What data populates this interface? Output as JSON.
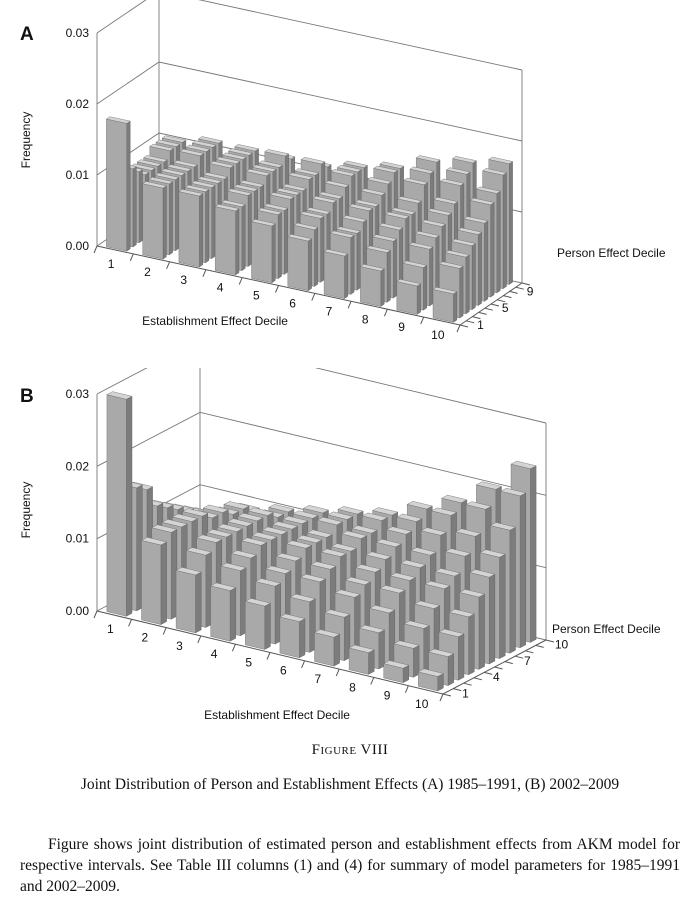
{
  "chart_data": [
    {
      "type": "bar3d",
      "panel": "A",
      "ylabel": "Frequency",
      "xlabel": "Establishment Effect Decile",
      "zlabel": "Person Effect Decile",
      "ylim": [
        0,
        0.03
      ],
      "yticks": [
        "0.00",
        "0.01",
        "0.02",
        "0.03"
      ],
      "x_categories": [
        "1",
        "2",
        "3",
        "4",
        "5",
        "6",
        "7",
        "8",
        "9",
        "10"
      ],
      "z_tick_labels": [
        "1",
        "5",
        "9"
      ],
      "values": [
        [
          0.018,
          0.01,
          0.01,
          0.009,
          0.008,
          0.007,
          0.006,
          0.005,
          0.004,
          0.004
        ],
        [
          0.011,
          0.01,
          0.01,
          0.009,
          0.009,
          0.008,
          0.008,
          0.007,
          0.006,
          0.007
        ],
        [
          0.01,
          0.01,
          0.01,
          0.01,
          0.009,
          0.009,
          0.008,
          0.008,
          0.008,
          0.008
        ],
        [
          0.009,
          0.01,
          0.01,
          0.01,
          0.01,
          0.009,
          0.009,
          0.009,
          0.009,
          0.009
        ],
        [
          0.009,
          0.01,
          0.01,
          0.01,
          0.01,
          0.01,
          0.01,
          0.01,
          0.01,
          0.01
        ],
        [
          0.009,
          0.01,
          0.011,
          0.011,
          0.01,
          0.01,
          0.01,
          0.01,
          0.011,
          0.011
        ],
        [
          0.009,
          0.011,
          0.011,
          0.011,
          0.011,
          0.011,
          0.011,
          0.011,
          0.012,
          0.013
        ],
        [
          0.01,
          0.011,
          0.011,
          0.011,
          0.011,
          0.012,
          0.012,
          0.013,
          0.014,
          0.014
        ],
        [
          0.01,
          0.011,
          0.011,
          0.012,
          0.012,
          0.012,
          0.013,
          0.014,
          0.015,
          0.016
        ],
        [
          0.01,
          0.011,
          0.011,
          0.011,
          0.011,
          0.012,
          0.013,
          0.015,
          0.016,
          0.017
        ]
      ]
    },
    {
      "type": "bar3d",
      "panel": "B",
      "ylabel": "Frequency",
      "xlabel": "Establishment Effect Decile",
      "zlabel": "Person Effect Decile",
      "ylim": [
        0,
        0.03
      ],
      "yticks": [
        "0.00",
        "0.01",
        "0.02",
        "0.03"
      ],
      "x_categories": [
        "1",
        "2",
        "3",
        "4",
        "5",
        "6",
        "7",
        "8",
        "9",
        "10"
      ],
      "z_tick_labels": [
        "1",
        "4",
        "7",
        "10"
      ],
      "values": [
        [
          0.03,
          0.011,
          0.008,
          0.007,
          0.006,
          0.005,
          0.004,
          0.003,
          0.002,
          0.002
        ],
        [
          0.017,
          0.012,
          0.01,
          0.009,
          0.008,
          0.007,
          0.006,
          0.005,
          0.004,
          0.004
        ],
        [
          0.016,
          0.012,
          0.011,
          0.01,
          0.009,
          0.009,
          0.008,
          0.007,
          0.006,
          0.006
        ],
        [
          0.013,
          0.012,
          0.011,
          0.011,
          0.01,
          0.01,
          0.009,
          0.009,
          0.008,
          0.008
        ],
        [
          0.012,
          0.012,
          0.011,
          0.011,
          0.011,
          0.011,
          0.01,
          0.01,
          0.01,
          0.01
        ],
        [
          0.011,
          0.011,
          0.011,
          0.011,
          0.011,
          0.011,
          0.011,
          0.011,
          0.011,
          0.012
        ],
        [
          0.01,
          0.011,
          0.011,
          0.011,
          0.011,
          0.012,
          0.012,
          0.012,
          0.013,
          0.014
        ],
        [
          0.009,
          0.01,
          0.011,
          0.011,
          0.012,
          0.012,
          0.013,
          0.014,
          0.015,
          0.017
        ],
        [
          0.008,
          0.01,
          0.01,
          0.011,
          0.012,
          0.013,
          0.014,
          0.016,
          0.018,
          0.021
        ],
        [
          0.007,
          0.009,
          0.01,
          0.011,
          0.012,
          0.013,
          0.015,
          0.017,
          0.02,
          0.024
        ]
      ]
    }
  ],
  "caption": {
    "figure_label": "Figure VIII",
    "title": "Joint Distribution of Person and Establishment Effects (A) 1985–1991, (B) 2002–2009",
    "note": "Figure shows joint distribution of estimated person and establishment effects from AKM model for respective intervals. See Table III columns (1) and (4) for summary of model parameters for 1985–1991 and 2002–2009."
  }
}
